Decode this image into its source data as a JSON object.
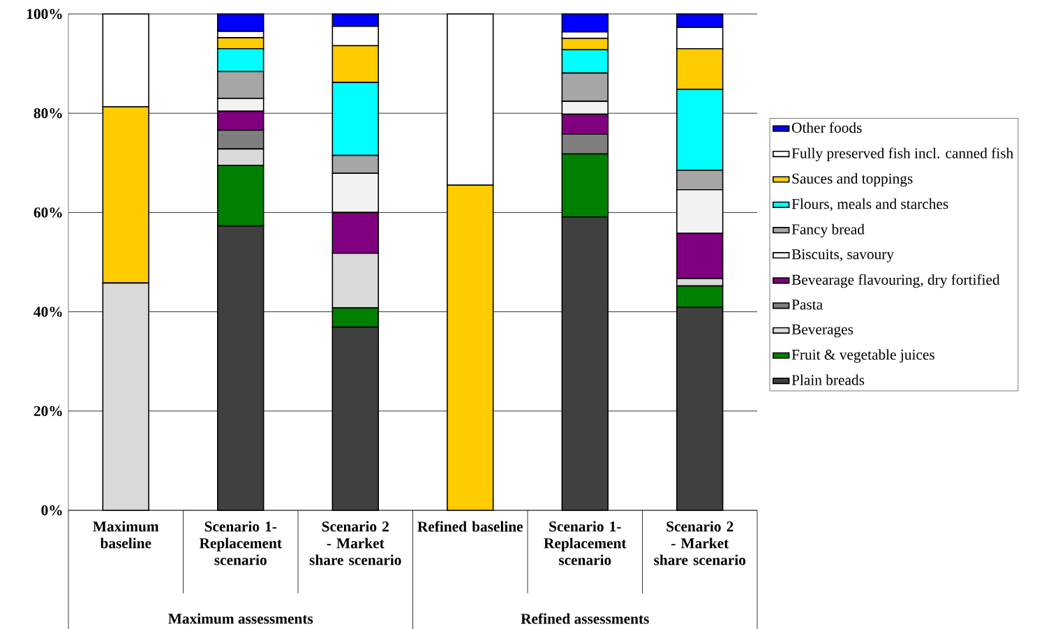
{
  "chart_data": {
    "type": "bar",
    "stacked": true,
    "categories": [
      "Maximum baseline",
      "Scenario 1- Replacement scenario",
      "Scenario 2 - Market share scenario",
      "Refined baseline",
      "Scenario 1- Replacement scenario",
      "Scenario 2 - Market share scenario"
    ],
    "series": [
      {
        "name": "Plain breads",
        "color": "#404040",
        "values": [
          0,
          57.3,
          36.9,
          0,
          59.1,
          40.9
        ]
      },
      {
        "name": "Fruit & vegetable juices",
        "color": "#008000",
        "values": [
          0,
          12.2,
          3.9,
          0,
          12.7,
          4.3
        ]
      },
      {
        "name": "Beverages",
        "color": "#d9d9d9",
        "values": [
          45.8,
          3.3,
          11.0,
          0,
          0,
          1.5
        ]
      },
      {
        "name": "Pasta",
        "color": "#7f7f7f",
        "values": [
          0,
          3.8,
          0,
          0,
          4.0,
          0
        ]
      },
      {
        "name": "Bevearage flavouring, dry fortified",
        "color": "#800080",
        "values": [
          0,
          3.8,
          8.2,
          0,
          4.0,
          9.1
        ]
      },
      {
        "name": "Biscuits, savoury",
        "color": "#f2f2f2",
        "values": [
          0,
          2.6,
          7.9,
          0,
          2.6,
          8.8
        ]
      },
      {
        "name": "Fancy bread",
        "color": "#a6a6a6",
        "values": [
          0,
          5.4,
          3.6,
          0,
          5.7,
          3.9
        ]
      },
      {
        "name": "Flours, meals and starches",
        "color": "#00ffff",
        "values": [
          0,
          4.6,
          14.7,
          0,
          4.7,
          16.3
        ]
      },
      {
        "name": "Sauces and toppings",
        "color": "#ffcc00",
        "values": [
          35.5,
          2.2,
          7.4,
          65.5,
          2.3,
          8.2
        ]
      },
      {
        "name": "Fully preserved fish incl. canned fish",
        "color": "#ffffff",
        "values": [
          18.7,
          1.3,
          3.9,
          34.5,
          1.3,
          4.3
        ]
      },
      {
        "name": "Other foods",
        "color": "#0000ff",
        "values": [
          0,
          3.5,
          2.5,
          0,
          3.6,
          2.7
        ]
      }
    ],
    "ylim": [
      0,
      100
    ],
    "yticks": [
      {
        "value": 0,
        "label": "0%"
      },
      {
        "value": 20,
        "label": "20%"
      },
      {
        "value": 40,
        "label": "40%"
      },
      {
        "value": 60,
        "label": "60%"
      },
      {
        "value": 80,
        "label": "80%"
      },
      {
        "value": 100,
        "label": "100%"
      }
    ],
    "grid": "y",
    "legend": "right",
    "annotations": [
      "Maximum assessments",
      "Refined assessments"
    ]
  }
}
